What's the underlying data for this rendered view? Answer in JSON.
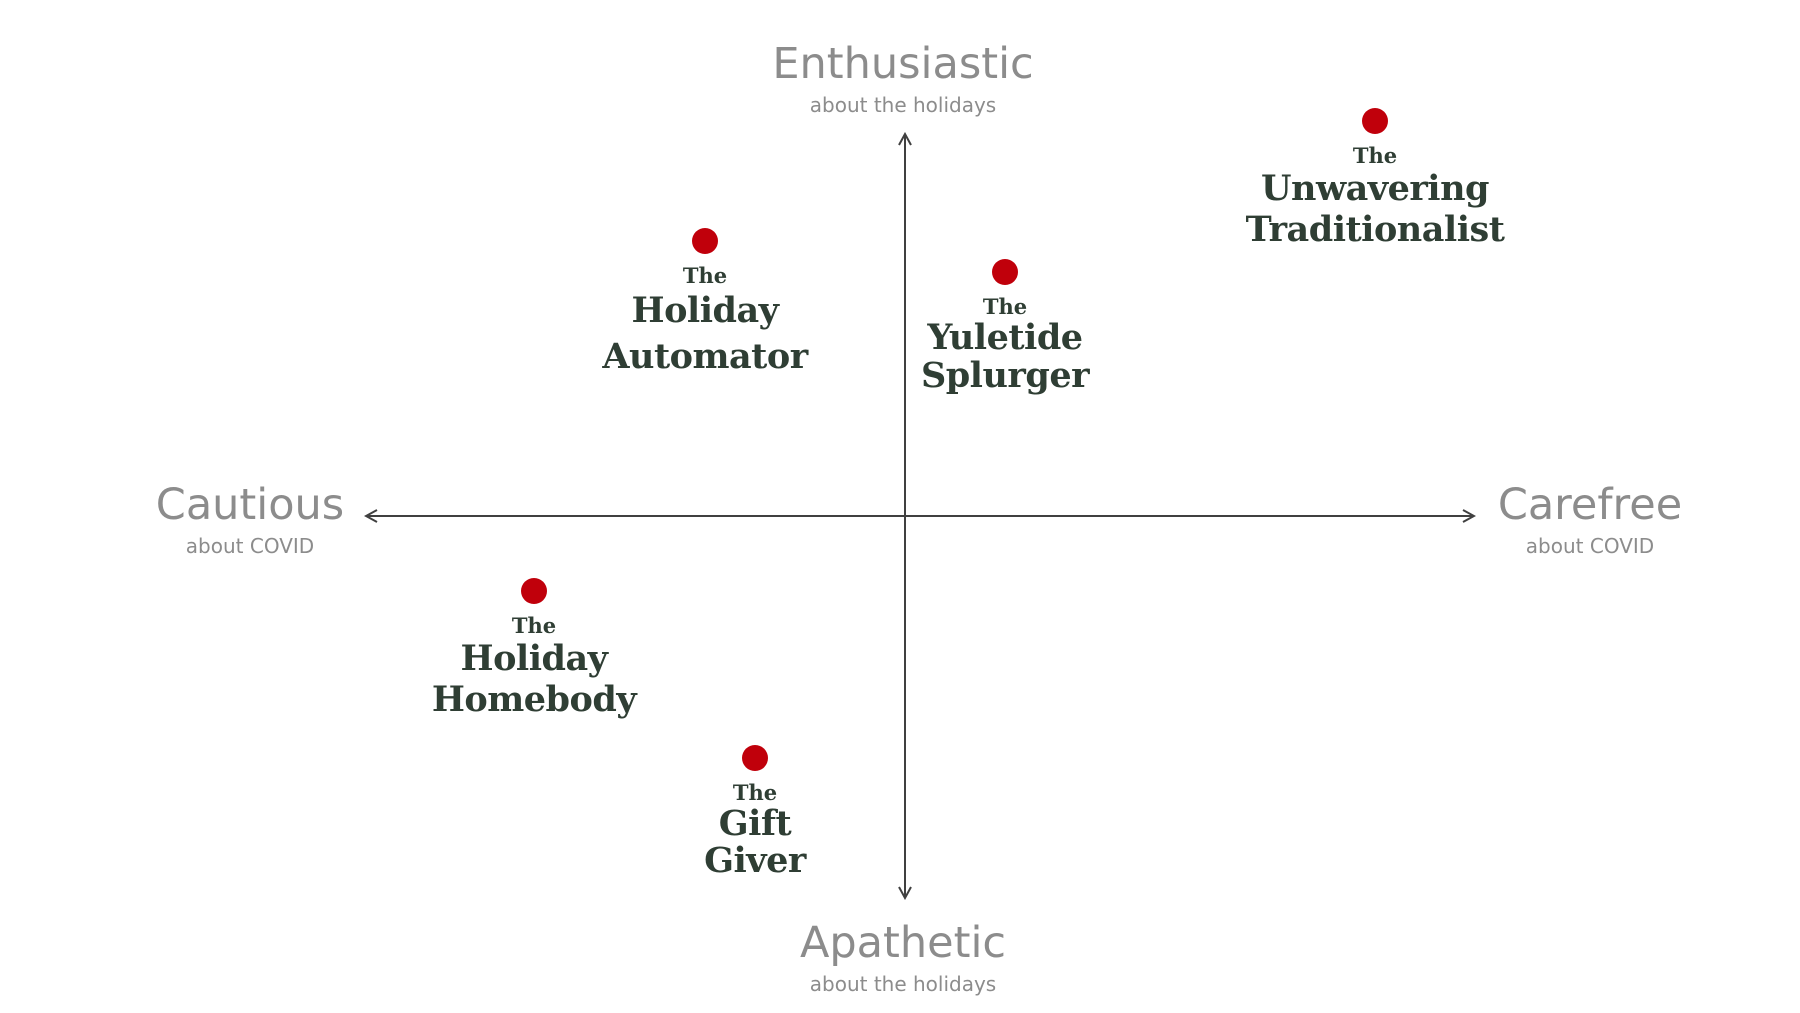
{
  "colors": {
    "dot": "#c0000b",
    "axis": "#404040",
    "label": "#8c8c8c",
    "persona_text": "#2f3e34"
  },
  "axes": {
    "top": {
      "main": "Enthusiastic",
      "sub": "about the holidays"
    },
    "bottom": {
      "main": "Apathetic",
      "sub": "about the holidays"
    },
    "left": {
      "main": "Cautious",
      "sub": "about COVID"
    },
    "right": {
      "main": "Carefree",
      "sub": "about COVID"
    }
  },
  "personas": [
    {
      "the": "The",
      "line1": "Unwavering",
      "line2": "Traditionalist"
    },
    {
      "the": "The",
      "line1": "Holiday",
      "line2": "Automator"
    },
    {
      "the": "The",
      "line1": "Yuletide",
      "line2": "Splurger"
    },
    {
      "the": "The",
      "line1": "Holiday",
      "line2": "Homebody"
    },
    {
      "the": "The",
      "line1": "Gift",
      "line2": "Giver"
    }
  ]
}
